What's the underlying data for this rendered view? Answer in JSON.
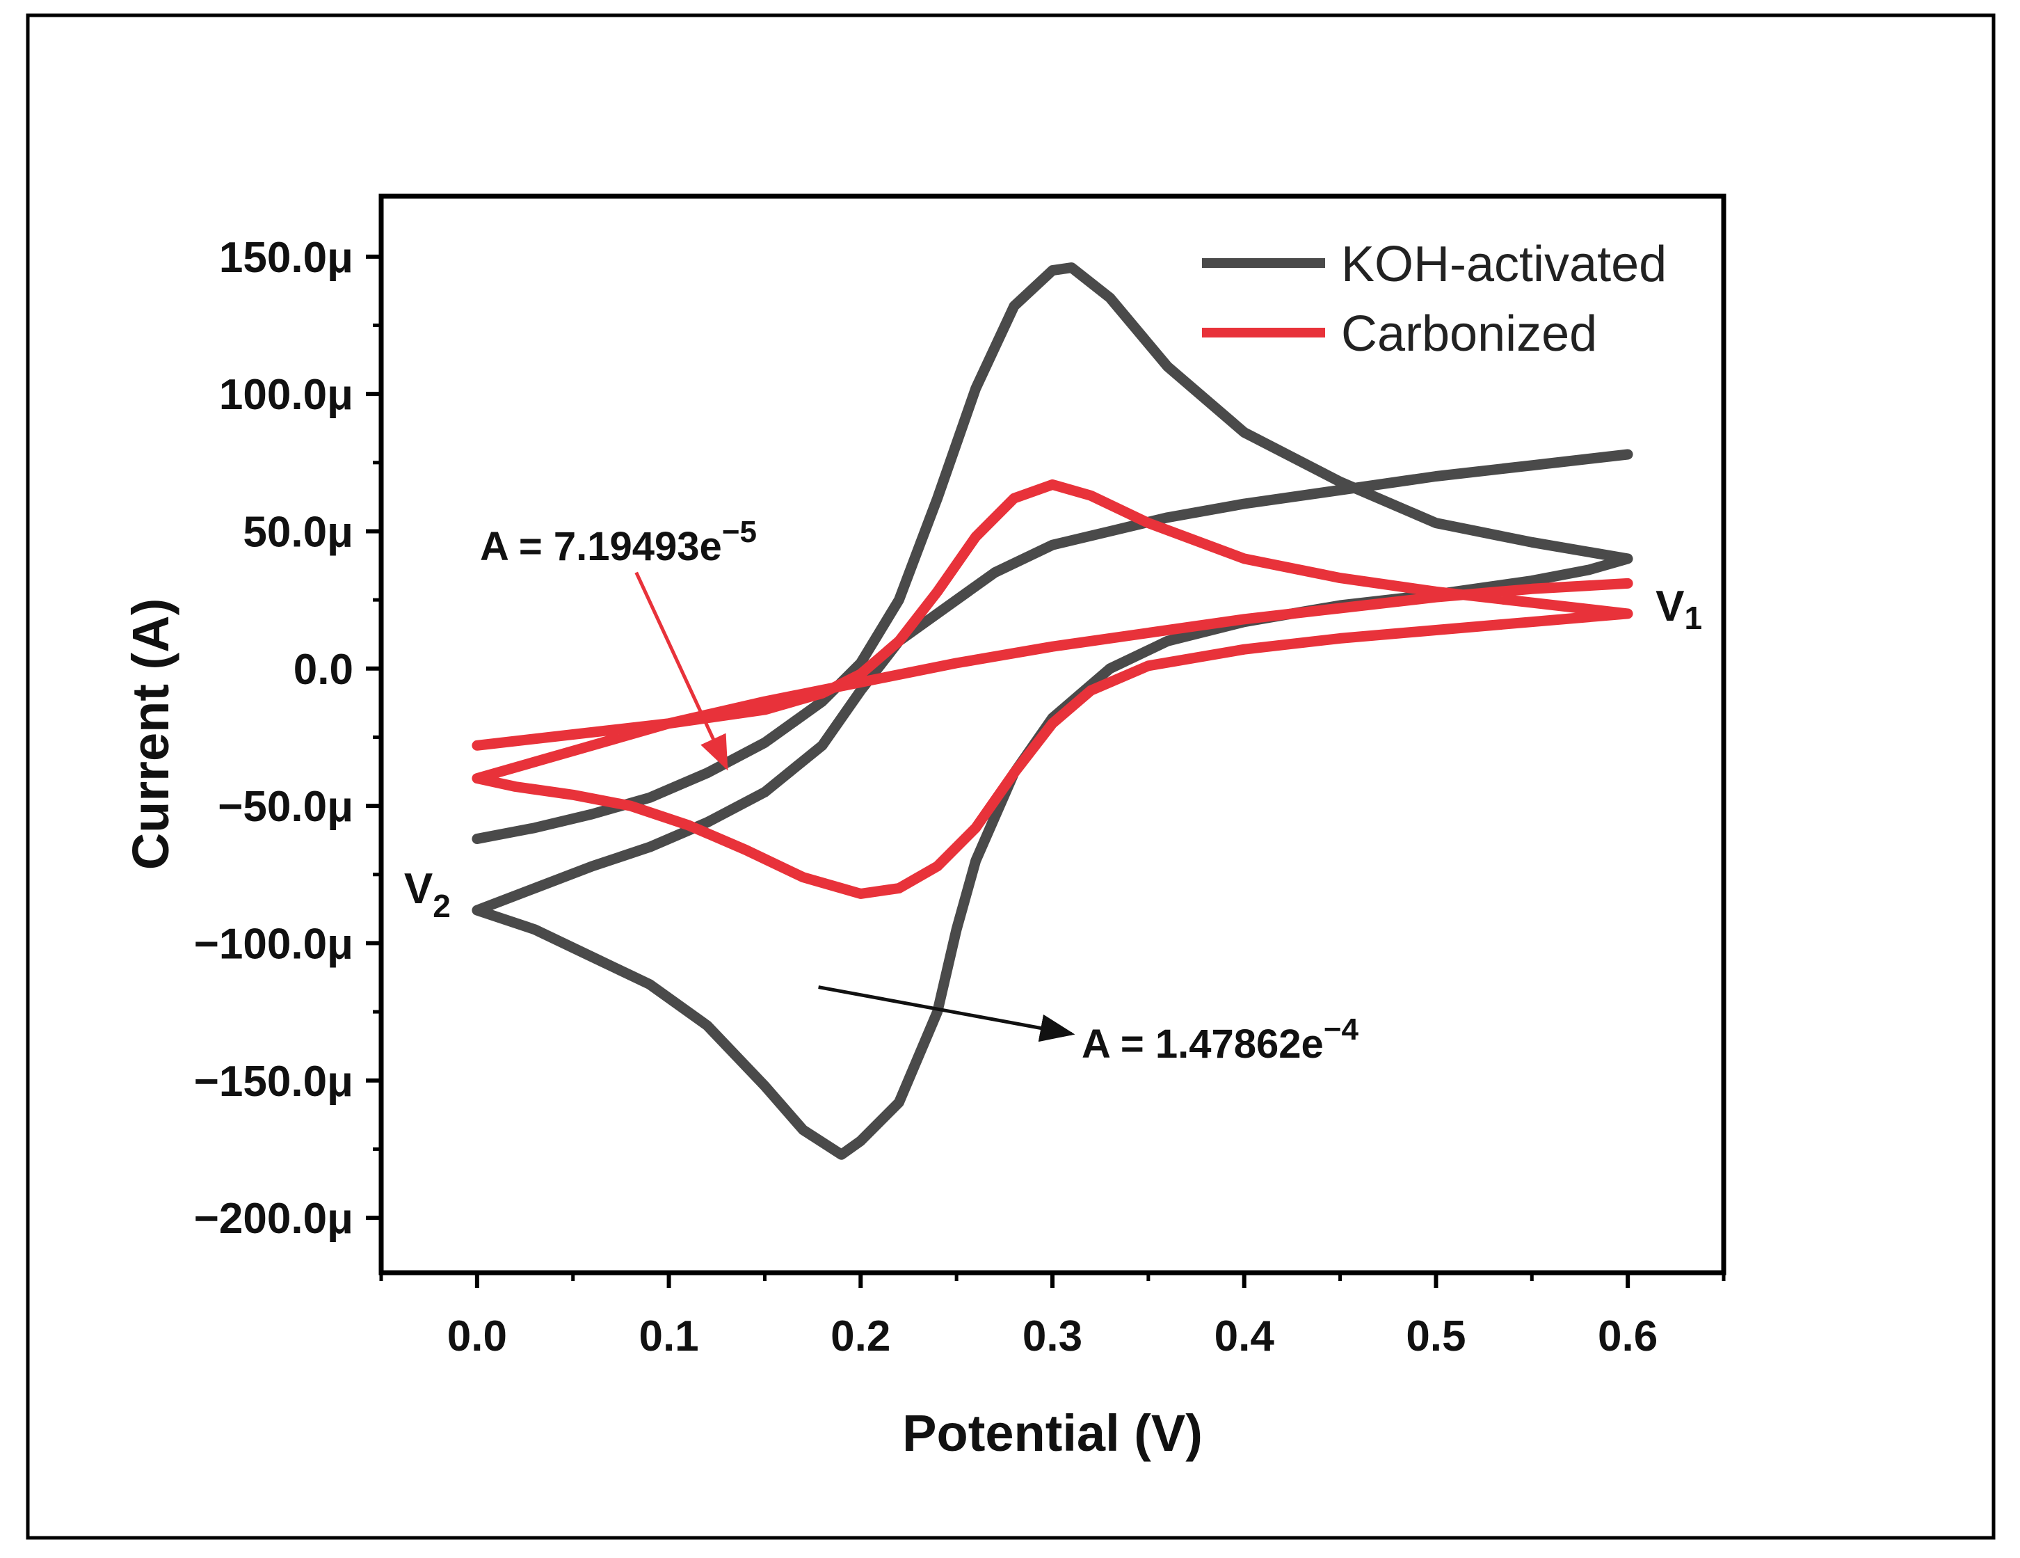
{
  "chart_data": {
    "type": "line",
    "title": "",
    "xlabel": "Potential (V)",
    "ylabel": "Current (A)",
    "xlim": [
      -0.05,
      0.65
    ],
    "ylim": [
      -220,
      172
    ],
    "y_unit": "µA",
    "x_ticks": [
      {
        "value": 0.0,
        "label": "0.0"
      },
      {
        "value": 0.1,
        "label": "0.1"
      },
      {
        "value": 0.2,
        "label": "0.2"
      },
      {
        "value": 0.3,
        "label": "0.3"
      },
      {
        "value": 0.4,
        "label": "0.4"
      },
      {
        "value": 0.5,
        "label": "0.5"
      },
      {
        "value": 0.6,
        "label": "0.6"
      }
    ],
    "y_ticks": [
      {
        "value": 150,
        "label": "150.0μ"
      },
      {
        "value": 100,
        "label": "100.0μ"
      },
      {
        "value": 50,
        "label": "50.0μ"
      },
      {
        "value": 0,
        "label": "0.0"
      },
      {
        "value": -50,
        "label": "−50.0μ"
      },
      {
        "value": -100,
        "label": "−100.0μ"
      },
      {
        "value": -150,
        "label": "−150.0μ"
      },
      {
        "value": -200,
        "label": "−200.0μ"
      }
    ],
    "legend_position": "top-right",
    "series": [
      {
        "name": "KOH-activated",
        "color": "#4a4a4a",
        "x": [
          0.0,
          0.03,
          0.06,
          0.09,
          0.12,
          0.15,
          0.18,
          0.2,
          0.22,
          0.24,
          0.26,
          0.28,
          0.3,
          0.31,
          0.33,
          0.36,
          0.4,
          0.45,
          0.5,
          0.55,
          0.6,
          0.58,
          0.55,
          0.5,
          0.45,
          0.4,
          0.36,
          0.33,
          0.3,
          0.28,
          0.26,
          0.25,
          0.24,
          0.22,
          0.2,
          0.19,
          0.17,
          0.15,
          0.12,
          0.09,
          0.06,
          0.03,
          0.0,
          0.03,
          0.06,
          0.09,
          0.12,
          0.15,
          0.18,
          0.2,
          0.22,
          0.25,
          0.27,
          0.3,
          0.33,
          0.36,
          0.4,
          0.45,
          0.5,
          0.55,
          0.6
        ],
        "y": [
          -62,
          -58,
          -53,
          -47,
          -38,
          -27,
          -12,
          2,
          25,
          62,
          102,
          132,
          145,
          146,
          135,
          110,
          86,
          68,
          53,
          46,
          40,
          36,
          32,
          27,
          23,
          17,
          10,
          0,
          -18,
          -38,
          -70,
          -95,
          -125,
          -158,
          -172,
          -177,
          -168,
          -152,
          -130,
          -115,
          -105,
          -95,
          -88,
          -80,
          -72,
          -65,
          -56,
          -45,
          -28,
          -8,
          10,
          25,
          35,
          45,
          50,
          55,
          60,
          65,
          70,
          74,
          78
        ]
      },
      {
        "name": "Carbonized",
        "color": "#e8323a",
        "x": [
          0.0,
          0.05,
          0.1,
          0.15,
          0.18,
          0.2,
          0.22,
          0.24,
          0.26,
          0.28,
          0.3,
          0.32,
          0.35,
          0.4,
          0.45,
          0.5,
          0.55,
          0.6,
          0.55,
          0.5,
          0.45,
          0.4,
          0.35,
          0.32,
          0.3,
          0.28,
          0.26,
          0.24,
          0.22,
          0.2,
          0.17,
          0.14,
          0.11,
          0.08,
          0.05,
          0.02,
          0.0,
          0.05,
          0.1,
          0.15,
          0.2,
          0.25,
          0.3,
          0.35,
          0.4,
          0.45,
          0.5,
          0.55,
          0.6
        ],
        "y": [
          -28,
          -24,
          -20,
          -15,
          -9,
          -2,
          10,
          28,
          48,
          62,
          67,
          63,
          53,
          40,
          33,
          28,
          24,
          20,
          17,
          14,
          11,
          7,
          1,
          -8,
          -20,
          -38,
          -58,
          -72,
          -80,
          -82,
          -76,
          -66,
          -57,
          -50,
          -46,
          -43,
          -40,
          -30,
          -20,
          -12,
          -5,
          2,
          8,
          13,
          18,
          22,
          26,
          29,
          31
        ]
      }
    ],
    "annotations": [
      {
        "text_base": "A = 7.19493e",
        "text_sup": "−5",
        "color": "#e8323a",
        "from": [
          0.083,
          35
        ],
        "to": [
          0.13,
          -36
        ]
      },
      {
        "text_base": "A = 1.47862e",
        "text_sup": "−4",
        "color": "#111111",
        "from": [
          0.178,
          -116
        ],
        "to": [
          0.31,
          -133
        ]
      }
    ],
    "vertex_labels": [
      {
        "base": "V",
        "sub": "1",
        "x": 0.6,
        "y": 20
      },
      {
        "base": "V",
        "sub": "2",
        "x": 0.0,
        "y": -88
      }
    ]
  }
}
